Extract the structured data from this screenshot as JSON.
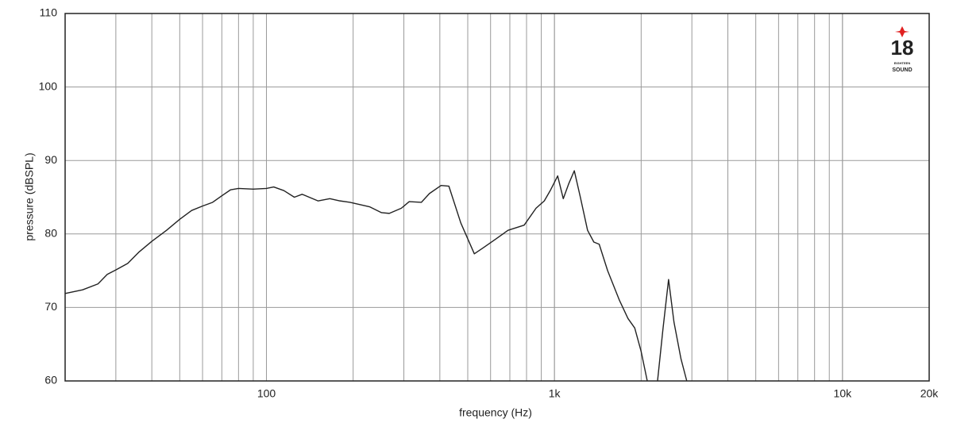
{
  "chart_data": {
    "type": "line",
    "x_label": "frequency (Hz)",
    "y_label": "pressure (dBSPL)",
    "x": [
      20,
      23,
      26,
      28,
      30,
      33,
      36,
      40,
      45,
      50,
      55,
      60,
      65,
      70,
      75,
      80,
      90,
      100,
      106,
      115,
      125,
      133,
      151,
      166,
      180,
      195,
      228,
      251,
      267,
      294,
      313,
      345,
      368,
      404,
      430,
      473,
      527,
      570,
      620,
      690,
      785,
      863,
      922,
      970,
      1026,
      1073,
      1120,
      1172,
      1230,
      1303,
      1370,
      1430,
      1530,
      1680,
      1800,
      1900,
      2000,
      2100,
      2200,
      2280,
      2380,
      2490,
      2600,
      2750,
      2880
    ],
    "values": [
      71.9,
      72.4,
      73.2,
      74.5,
      75.1,
      76.0,
      77.5,
      79.0,
      80.5,
      82.0,
      83.2,
      83.8,
      84.3,
      85.2,
      86.0,
      86.2,
      86.1,
      86.2,
      86.4,
      85.9,
      85.0,
      85.4,
      84.5,
      84.8,
      84.5,
      84.3,
      83.7,
      82.9,
      82.8,
      83.5,
      84.4,
      84.3,
      85.5,
      86.6,
      86.5,
      81.5,
      77.3,
      78.2,
      79.2,
      80.5,
      81.2,
      83.5,
      84.5,
      86.0,
      87.9,
      84.8,
      86.8,
      88.6,
      85.0,
      80.5,
      78.9,
      78.6,
      75.0,
      71.0,
      68.5,
      67.2,
      64.0,
      60.0,
      null,
      60.0,
      67.0,
      73.8,
      68.0,
      63.0,
      60.0
    ],
    "color": "#222222",
    "xscale": "log",
    "xlim": [
      20,
      20000
    ],
    "xticks": [
      100,
      {
        "value": 1000,
        "label": "1k"
      },
      {
        "value": 10000,
        "label": "10k"
      },
      {
        "value": 20000,
        "label": "20k"
      }
    ],
    "ylim": [
      60,
      110
    ],
    "yticks": [
      60,
      70,
      80,
      90,
      100,
      110
    ],
    "grid": true
  },
  "logo": {
    "number": "18",
    "line1": "EIGHTEEN",
    "line2": "SOUND"
  }
}
